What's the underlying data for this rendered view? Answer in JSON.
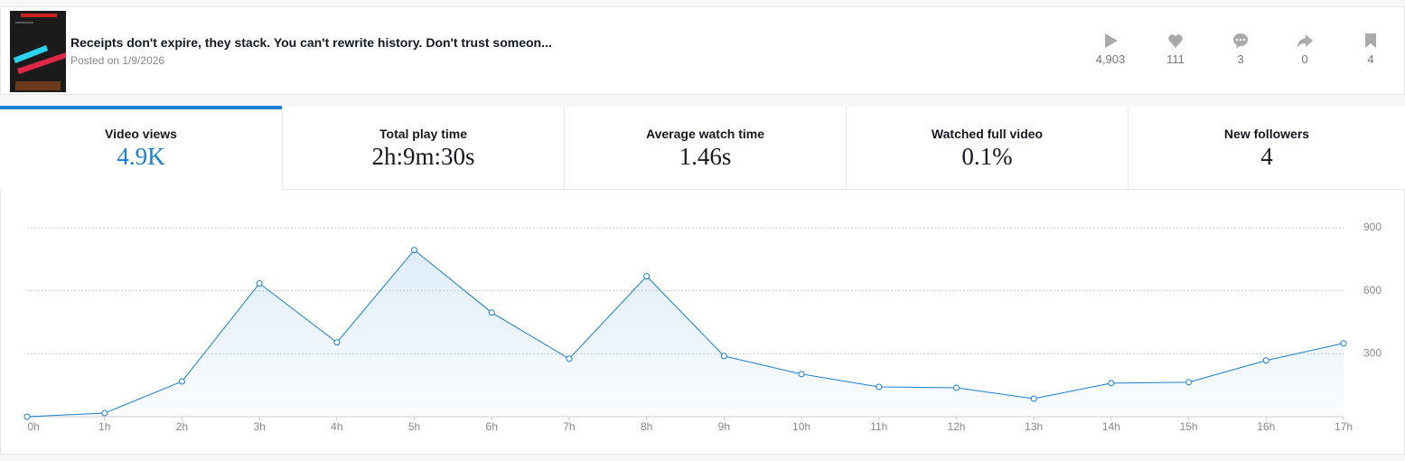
{
  "header": {
    "title": "Receipts don't expire, they stack. You can't rewrite history. Don't trust someon...",
    "date": "Posted on 1/9/2026",
    "stats": [
      "4,903",
      "111",
      "3",
      "0",
      "4"
    ]
  },
  "tabs": [
    {
      "label": "Video views",
      "value": "4.9K"
    },
    {
      "label": "Total play time",
      "value": "2h:9m:30s"
    },
    {
      "label": "Average watch time",
      "value": "1.46s"
    },
    {
      "label": "Watched full video",
      "value": "0.1%"
    },
    {
      "label": "New followers",
      "value": "4"
    }
  ],
  "chart_data": {
    "type": "line",
    "categories": [
      "0h",
      "1h",
      "2h",
      "3h",
      "4h",
      "5h",
      "6h",
      "7h",
      "8h",
      "9h",
      "10h",
      "11h",
      "12h",
      "13h",
      "14h",
      "15h",
      "16h",
      "17h"
    ],
    "values": [
      0,
      17,
      168,
      635,
      354,
      794,
      496,
      276,
      669,
      289,
      203,
      142,
      138,
      86,
      160,
      164,
      268,
      350
    ],
    "color": "#1a7fd0",
    "ylim": [
      0,
      900
    ],
    "yticks": [
      300,
      600,
      900
    ],
    "grid": true
  }
}
